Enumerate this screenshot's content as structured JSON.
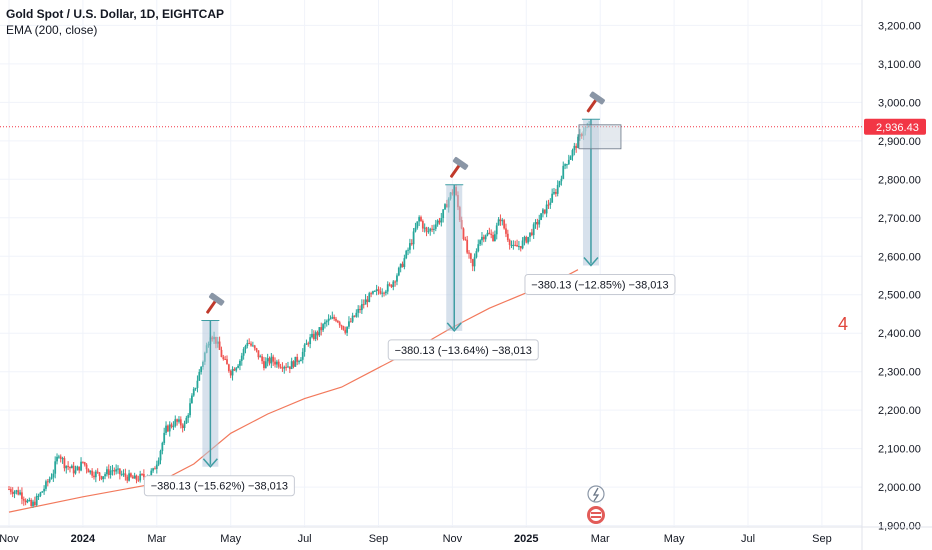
{
  "header": {
    "symbol": "Gold Spot / U.S. Dollar, 1D, EIGHTCAP",
    "indicator": "EMA (200, close)"
  },
  "colors": {
    "up": "#26a69a",
    "down": "#ef5350",
    "ema": "#f2795c",
    "measure_fill": "#b7c9dd",
    "measure_arrow": "#3f9da3",
    "price_label_bg": "#f23645",
    "grid": "#f0f3fa"
  },
  "annotation_number": "4",
  "price_tag": "2,936.43",
  "chart_data": {
    "type": "candlestick",
    "title": "Gold Spot / U.S. Dollar, 1D, EIGHTCAP",
    "ylim": [
      1860,
      3240
    ],
    "y_ticks": [
      "1,900.00",
      "2,000.00",
      "2,100.00",
      "2,200.00",
      "2,300.00",
      "2,400.00",
      "2,500.00",
      "2,600.00",
      "2,700.00",
      "2,800.00",
      "2,900.00",
      "3,000.00",
      "3,100.00",
      "3,200.00"
    ],
    "y_tick_values": [
      1900,
      2000,
      2100,
      2200,
      2300,
      2400,
      2500,
      2600,
      2700,
      2800,
      2900,
      3000,
      3100,
      3200
    ],
    "x_ticks": [
      {
        "label": "Nov",
        "month": 0,
        "bold": false
      },
      {
        "label": "2024",
        "month": 2,
        "bold": true
      },
      {
        "label": "Mar",
        "month": 4,
        "bold": false
      },
      {
        "label": "May",
        "month": 6,
        "bold": false
      },
      {
        "label": "Jul",
        "month": 8,
        "bold": false
      },
      {
        "label": "Sep",
        "month": 10,
        "bold": false
      },
      {
        "label": "Nov",
        "month": 12,
        "bold": false
      },
      {
        "label": "2025",
        "month": 14,
        "bold": true
      },
      {
        "label": "Mar",
        "month": 16,
        "bold": false
      },
      {
        "label": "May",
        "month": 18,
        "bold": false
      },
      {
        "label": "Jul",
        "month": 20,
        "bold": false
      },
      {
        "label": "Sep",
        "month": 22,
        "bold": false
      }
    ],
    "price_path": [
      [
        0.0,
        1995
      ],
      [
        0.3,
        1985
      ],
      [
        0.6,
        1950
      ],
      [
        0.8,
        1975
      ],
      [
        1.0,
        2005
      ],
      [
        1.2,
        2040
      ],
      [
        1.35,
        2090
      ],
      [
        1.5,
        2060
      ],
      [
        1.8,
        2040
      ],
      [
        2.0,
        2065
      ],
      [
        2.2,
        2040
      ],
      [
        2.5,
        2030
      ],
      [
        2.8,
        2045
      ],
      [
        3.1,
        2030
      ],
      [
        3.4,
        2020
      ],
      [
        3.7,
        2030
      ],
      [
        3.9,
        2040
      ],
      [
        4.05,
        2080
      ],
      [
        4.25,
        2150
      ],
      [
        4.5,
        2170
      ],
      [
        4.75,
        2160
      ],
      [
        4.95,
        2230
      ],
      [
        5.25,
        2330
      ],
      [
        5.45,
        2400
      ],
      [
        5.6,
        2380
      ],
      [
        5.8,
        2330
      ],
      [
        6.0,
        2300
      ],
      [
        6.25,
        2330
      ],
      [
        6.45,
        2380
      ],
      [
        6.7,
        2350
      ],
      [
        6.9,
        2320
      ],
      [
        7.1,
        2330
      ],
      [
        7.35,
        2320
      ],
      [
        7.6,
        2315
      ],
      [
        7.9,
        2340
      ],
      [
        8.1,
        2380
      ],
      [
        8.35,
        2400
      ],
      [
        8.6,
        2430
      ],
      [
        8.85,
        2440
      ],
      [
        9.1,
        2410
      ],
      [
        9.4,
        2450
      ],
      [
        9.7,
        2490
      ],
      [
        10.0,
        2510
      ],
      [
        10.3,
        2520
      ],
      [
        10.6,
        2570
      ],
      [
        10.9,
        2640
      ],
      [
        11.1,
        2700
      ],
      [
        11.3,
        2660
      ],
      [
        11.5,
        2680
      ],
      [
        11.7,
        2700
      ],
      [
        11.9,
        2750
      ],
      [
        12.05,
        2780
      ],
      [
        12.2,
        2700
      ],
      [
        12.4,
        2610
      ],
      [
        12.55,
        2570
      ],
      [
        12.7,
        2640
      ],
      [
        12.9,
        2660
      ],
      [
        13.1,
        2650
      ],
      [
        13.3,
        2700
      ],
      [
        13.45,
        2660
      ],
      [
        13.65,
        2620
      ],
      [
        13.85,
        2630
      ],
      [
        14.05,
        2650
      ],
      [
        14.25,
        2680
      ],
      [
        14.5,
        2720
      ],
      [
        14.8,
        2770
      ],
      [
        15.05,
        2840
      ],
      [
        15.3,
        2880
      ],
      [
        15.55,
        2930
      ],
      [
        15.75,
        2936
      ]
    ],
    "ema_200": [
      [
        0.0,
        1935
      ],
      [
        2.0,
        1975
      ],
      [
        4.0,
        2010
      ],
      [
        5.0,
        2060
      ],
      [
        6.0,
        2140
      ],
      [
        7.0,
        2190
      ],
      [
        8.0,
        2230
      ],
      [
        9.0,
        2260
      ],
      [
        10.0,
        2310
      ],
      [
        11.0,
        2360
      ],
      [
        12.0,
        2415
      ],
      [
        13.0,
        2465
      ],
      [
        14.0,
        2505
      ],
      [
        15.0,
        2545
      ],
      [
        15.4,
        2565
      ]
    ],
    "measurements": [
      {
        "label": "−380.13 (−15.62%) −38,013",
        "month": 5.45,
        "top": 2433,
        "bottom": 2053
      },
      {
        "label": "−380.13 (−13.64%) −38,013",
        "month": 12.05,
        "top": 2786,
        "bottom": 2406
      },
      {
        "label": "−380.13 (−12.85%) −38,013",
        "month": 15.75,
        "top": 2956,
        "bottom": 2576
      }
    ],
    "current_price": 2936.43
  }
}
